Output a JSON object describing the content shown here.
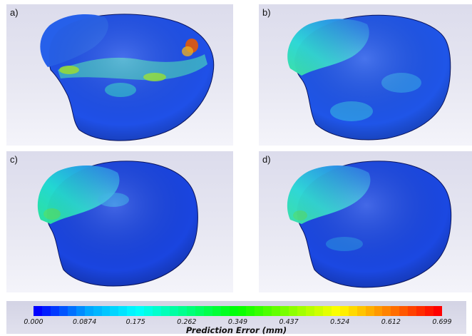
{
  "panels": [
    {
      "label": "a)"
    },
    {
      "label": "b)"
    },
    {
      "label": "c)"
    },
    {
      "label": "d)"
    }
  ],
  "colorbar": {
    "title": "Prediction Error (mm)",
    "ticks": [
      "0.000",
      "0.0874",
      "0.175",
      "0.262",
      "0.349",
      "0.437",
      "0.524",
      "0.612",
      "0.699"
    ],
    "min": 0.0,
    "max": 0.699,
    "colors": [
      "#0000ff",
      "#00a5ff",
      "#00ffff",
      "#00ff80",
      "#00ff00",
      "#80ff00",
      "#ffff00",
      "#ff8000",
      "#ff0000"
    ]
  }
}
